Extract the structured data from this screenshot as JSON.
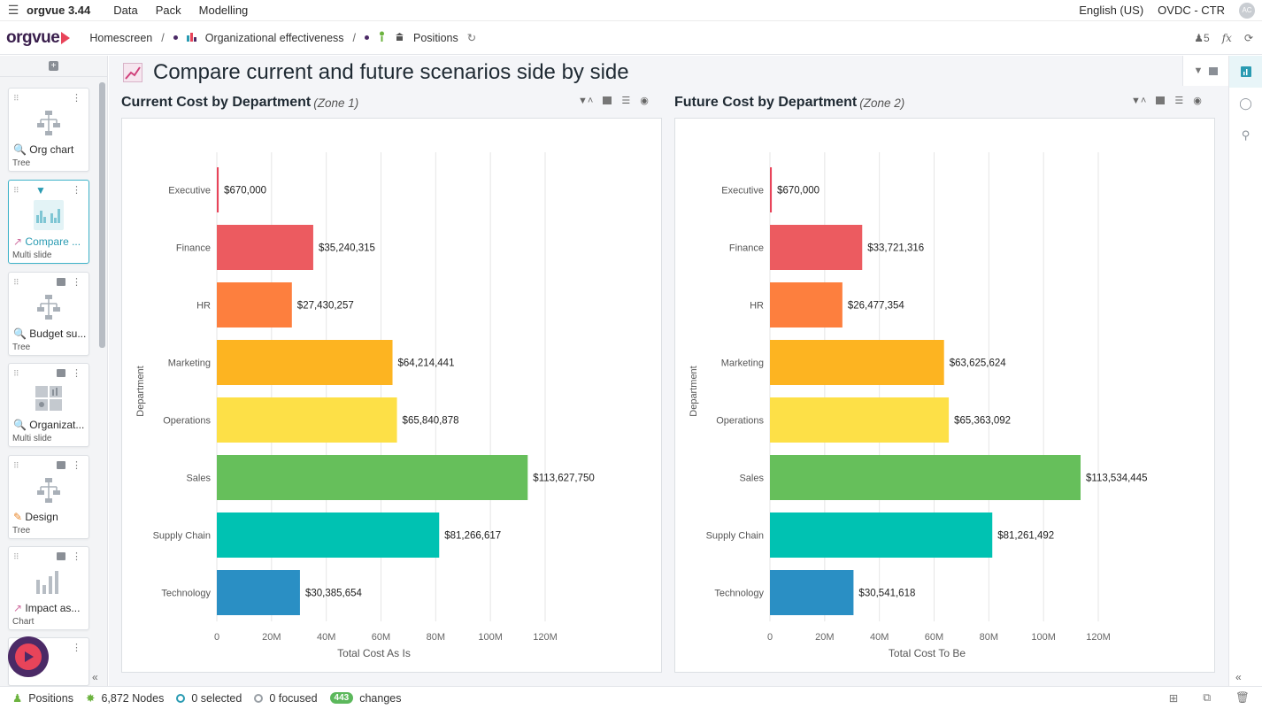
{
  "menubar": {
    "app_name": "orgvue 3.44",
    "items": [
      "Data",
      "Pack",
      "Modelling"
    ],
    "language": "English (US)",
    "workspace": "OVDC - CTR",
    "avatar_initials": "AC"
  },
  "header": {
    "logo": "orgvue",
    "breadcrumbs": [
      "Homescreen",
      "Organizational effectiveness",
      "Positions"
    ],
    "user_count": "5",
    "fx_label": "fx"
  },
  "sidebar": {
    "cards": [
      {
        "title": "Org chart",
        "type": "Tree"
      },
      {
        "title": "Compare ...",
        "type": "Multi slide"
      },
      {
        "title": "Budget su...",
        "type": "Tree"
      },
      {
        "title": "Organizat...",
        "type": "Multi slide"
      },
      {
        "title": "Design",
        "type": "Tree"
      },
      {
        "title": "Impact as...",
        "type": "Chart"
      }
    ]
  },
  "main": {
    "page_title": "Compare current and future scenarios side by side",
    "left_panel": {
      "title": "Current Cost by Department",
      "zone": "(Zone 1)"
    },
    "right_panel": {
      "title": "Future Cost by Department",
      "zone": "(Zone 2)"
    }
  },
  "chart_data": [
    {
      "type": "bar",
      "orientation": "horizontal",
      "title": "Current Cost by Department",
      "ylabel": "Department",
      "xlabel": "Total Cost As Is",
      "xlim": [
        0,
        120000000
      ],
      "xticks": [
        "0",
        "20M",
        "40M",
        "60M",
        "80M",
        "100M",
        "120M"
      ],
      "categories": [
        "Executive",
        "Finance",
        "HR",
        "Marketing",
        "Operations",
        "Sales",
        "Supply Chain",
        "Technology"
      ],
      "values": [
        670000,
        35240315,
        27430257,
        64214441,
        65840878,
        113627750,
        81266617,
        30385654
      ],
      "labels": [
        "$670,000",
        "$35,240,315",
        "$27,430,257",
        "$64,214,441",
        "$65,840,878",
        "$113,627,750",
        "$81,266,617",
        "$30,385,654"
      ],
      "colors": [
        "#e8445a",
        "#ec5b60",
        "#fd7f3e",
        "#fdb421",
        "#fde047",
        "#66bf5b",
        "#00c2b2",
        "#2a8fc4"
      ]
    },
    {
      "type": "bar",
      "orientation": "horizontal",
      "title": "Future Cost by Department",
      "ylabel": "Department",
      "xlabel": "Total Cost To Be",
      "xlim": [
        0,
        120000000
      ],
      "xticks": [
        "0",
        "20M",
        "40M",
        "60M",
        "80M",
        "100M",
        "120M"
      ],
      "categories": [
        "Executive",
        "Finance",
        "HR",
        "Marketing",
        "Operations",
        "Sales",
        "Supply Chain",
        "Technology"
      ],
      "values": [
        670000,
        33721316,
        26477354,
        63625624,
        65363092,
        113534445,
        81261492,
        30541618
      ],
      "labels": [
        "$670,000",
        "$33,721,316",
        "$26,477,354",
        "$63,625,624",
        "$65,363,092",
        "$113,534,445",
        "$81,261,492",
        "$30,541,618"
      ],
      "colors": [
        "#e8445a",
        "#ec5b60",
        "#fd7f3e",
        "#fdb421",
        "#fde047",
        "#66bf5b",
        "#00c2b2",
        "#2a8fc4"
      ]
    }
  ],
  "status": {
    "dataset": "Positions",
    "nodes": "6,872 Nodes",
    "selected": "0 selected",
    "focused": "0 focused",
    "changes_count": "443",
    "changes_label": "changes"
  }
}
